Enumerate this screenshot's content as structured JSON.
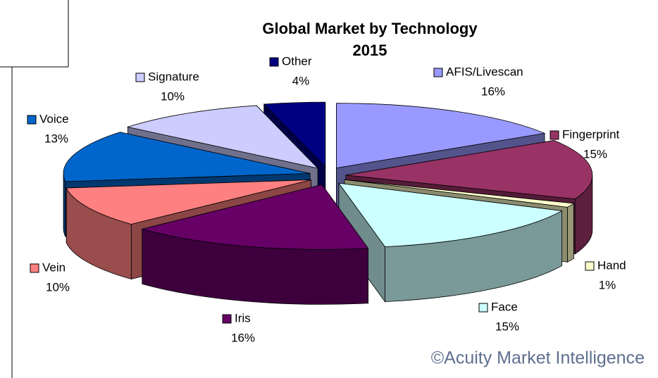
{
  "chart_data": {
    "type": "pie",
    "title": "Global Market by Technology",
    "subtitle": "2015",
    "annotation": "©Acuity Market Intelligence",
    "categories": [
      "AFIS/Livescan",
      "Fingerprint",
      "Hand",
      "Face",
      "Iris",
      "Vein",
      "Voice",
      "Signature",
      "Other"
    ],
    "values": [
      16,
      15,
      1,
      15,
      16,
      10,
      13,
      10,
      4
    ],
    "value_labels": [
      "16%",
      "15%",
      "1%",
      "15%",
      "16%",
      "10%",
      "13%",
      "10%",
      "4%"
    ],
    "colors": [
      "#9999ff",
      "#993366",
      "#ffffcc",
      "#ccffff",
      "#660066",
      "#ff8080",
      "#0066cc",
      "#ccccff",
      "#000080"
    ],
    "legend": "labels"
  }
}
